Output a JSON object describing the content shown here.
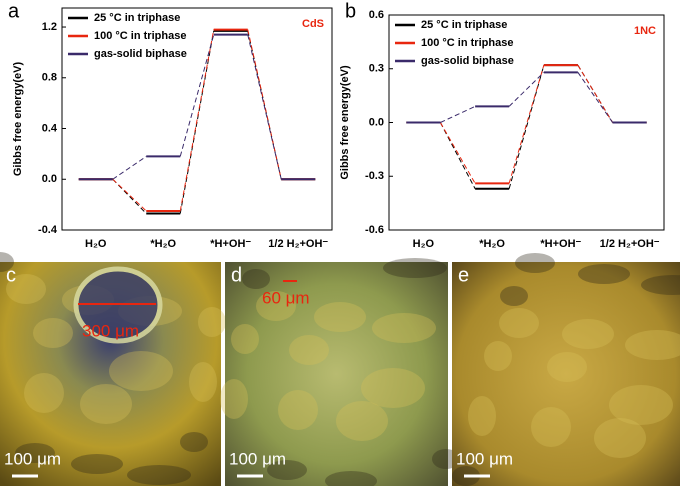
{
  "chart_data": [
    {
      "type": "energy-level",
      "panel_label": "a",
      "annotation": "CdS",
      "ylabel": "Gibbs free energy(eV)",
      "categories": [
        "H₂O",
        "*H₂O",
        "*H+OH⁻",
        "1/2 H₂+OH⁻"
      ],
      "series": [
        {
          "name": "25 °C in triphase",
          "color": "#000000",
          "values": [
            0,
            -0.27,
            1.17,
            0
          ]
        },
        {
          "name": "100 °C in triphase",
          "color": "#e8260f",
          "values": [
            0,
            -0.25,
            1.18,
            0
          ]
        },
        {
          "name": "gas-solid biphase",
          "color": "#3a2a6a",
          "values": [
            0,
            0.18,
            1.14,
            0
          ]
        }
      ],
      "ylim": [
        -0.4,
        1.35
      ],
      "yticks": [
        -0.4,
        {
          "value": 0,
          "label": "0.0"
        },
        0.4,
        0.8,
        1.2
      ]
    },
    {
      "type": "energy-level",
      "panel_label": "b",
      "annotation": "1NC",
      "ylabel": "Gibbs free energy(eV)",
      "categories": [
        "H₂O",
        "*H₂O",
        "*H+OH⁻",
        "1/2 H₂+OH⁻"
      ],
      "series": [
        {
          "name": "25 °C in triphase",
          "color": "#000000",
          "values": [
            0,
            -0.37,
            0.32,
            0
          ]
        },
        {
          "name": "100 °C in triphase",
          "color": "#e8260f",
          "values": [
            0,
            -0.34,
            0.32,
            0
          ]
        },
        {
          "name": "gas-solid biphase",
          "color": "#3a2a6a",
          "values": [
            0,
            0.09,
            0.28,
            0
          ]
        }
      ],
      "ylim": [
        -0.6,
        0.6
      ],
      "yticks": [
        -0.6,
        -0.3,
        {
          "value": 0,
          "label": "0.0"
        },
        0.3,
        0.6
      ]
    }
  ],
  "photos": [
    {
      "label": "c",
      "measure": "300 μm",
      "scale": "100 μm"
    },
    {
      "label": "d",
      "measure": "60 μm",
      "scale": "100 μm"
    },
    {
      "label": "e",
      "scale": "100 μm"
    }
  ]
}
